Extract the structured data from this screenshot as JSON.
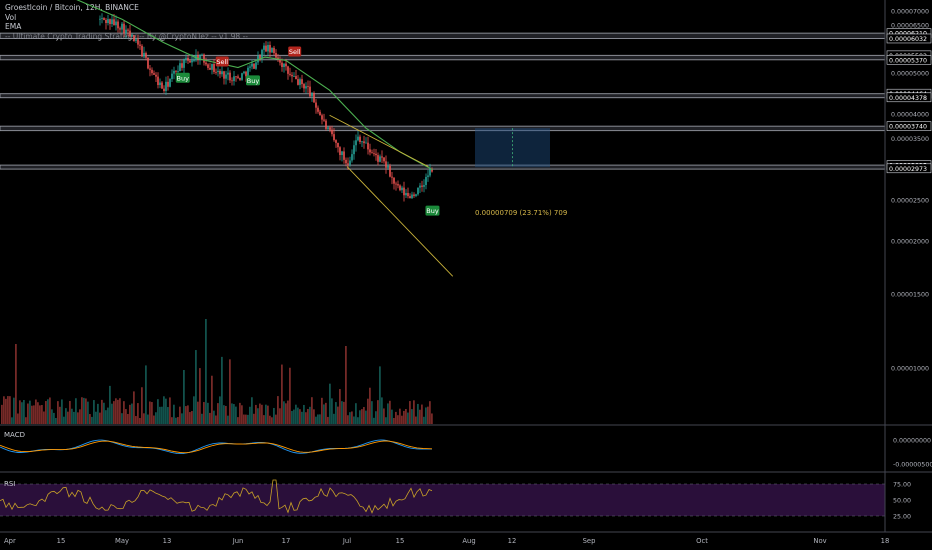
{
  "legend": {
    "title": "Groestlcoin / Bitcoin, 12H, BINANCE",
    "vol": "Vol",
    "ema": "EMA",
    "strategy": "-- Ultimate Crypto Trading Strategy -- By @CryptoNTez -- v1.98 --"
  },
  "price_axis": {
    "ticks": [
      "0.00007000",
      "0.00006500",
      "0.00006000",
      "0.00005500",
      "0.00005000",
      "0.00004500",
      "0.00004000",
      "0.00003500",
      "0.00003000",
      "0.00002500",
      "0.00002000",
      "0.00001500",
      "0.00001000"
    ],
    "tick_values": [
      7e-05,
      6.5e-05,
      6e-05,
      5.5e-05,
      5e-05,
      4.5e-05,
      4e-05,
      3.5e-05,
      3e-05,
      2.5e-05,
      2e-05,
      1.5e-05,
      1e-05
    ],
    "level_labels": [
      "0.00006210",
      "0.00006032",
      "0.00005502",
      "0.00005370",
      "0.00004464",
      "0.00004378",
      "0.00003740",
      "0.00003025",
      "0.00002973"
    ]
  },
  "time_axis": {
    "labels": [
      "Apr",
      "15",
      "May",
      "13",
      "Jun",
      "17",
      "Jul",
      "15",
      "Aug",
      "12",
      "Sep",
      "Oct",
      "Nov",
      "18"
    ]
  },
  "signals": {
    "buy": "Buy",
    "sell": "Sell"
  },
  "measure": {
    "label": "0.00000709 (23.71%) 709"
  },
  "macd": {
    "title": "MACD",
    "ticks": [
      "0.00000000",
      "-0.00000500"
    ]
  },
  "rsi": {
    "title": "RSI",
    "ticks": [
      "75.00",
      "50.00",
      "25.00"
    ]
  },
  "colors": {
    "background": "#000000",
    "up": "#26a69a",
    "down": "#ef5350",
    "ema": "#4caf50",
    "wedge": "#c9b23a",
    "buy_badge": "#1b8a3a",
    "sell_badge": "#b3261e",
    "macd_line": "#2196f3",
    "signal_line": "#ff9800",
    "rsi_line": "#c9a227",
    "rsi_band": "#2a0f3a"
  },
  "chart_data": {
    "type": "candlestick",
    "title": "Groestlcoin / Bitcoin, 12H, BINANCE",
    "x_range": [
      "Apr",
      "Nov 18"
    ],
    "ylim": [
      8.5e-06,
      7.25e-05
    ],
    "horizontal_levels": [
      {
        "top": 6.21e-05,
        "bottom": 6.032e-05
      },
      {
        "top": 5.502e-05,
        "bottom": 5.37e-05
      },
      {
        "top": 4.464e-05,
        "bottom": 4.378e-05
      },
      {
        "top": 3.74e-05,
        "bottom": 3.65e-05
      },
      {
        "top": 3.025e-05,
        "bottom": 2.973e-05
      }
    ],
    "price_path": [
      [
        "Apr 1",
        7.25e-05
      ],
      [
        "Apr 15",
        6.9e-05
      ],
      [
        "Apr 27",
        6.65e-05
      ],
      [
        "May 1",
        6.45e-05
      ],
      [
        "May 6",
        5.75e-05
      ],
      [
        "May 10",
        4.95e-05
      ],
      [
        "May 13",
        4.55e-05
      ],
      [
        "May 17",
        5.2e-05
      ],
      [
        "May 22",
        5.5e-05
      ],
      [
        "May 27",
        5e-05
      ],
      [
        "Jun 1",
        4.85e-05
      ],
      [
        "Jun 6",
        5.2e-05
      ],
      [
        "Jun 10",
        5.75e-05
      ],
      [
        "Jun 14",
        5.5e-05
      ],
      [
        "Jun 18",
        4.9e-05
      ],
      [
        "Jun 22",
        4.6e-05
      ],
      [
        "Jun 26",
        3.75e-05
      ],
      [
        "Jul 1",
        3.05e-05
      ],
      [
        "Jul 4",
        3.55e-05
      ],
      [
        "Jul 8",
        3.2e-05
      ],
      [
        "Jul 11",
        3.05e-05
      ],
      [
        "Jul 14",
        2.68e-05
      ],
      [
        "Jul 17",
        2.55e-05
      ],
      [
        "Jul 20",
        2.65e-05
      ],
      [
        "Jul 23",
        2.98e-05
      ]
    ],
    "ema_path": [
      [
        "Apr 17",
        7.6e-05
      ],
      [
        "May 1",
        6.7e-05
      ],
      [
        "May 13",
        5.9e-05
      ],
      [
        "May 22",
        5.4e-05
      ],
      [
        "Jun 1",
        5.15e-05
      ],
      [
        "Jun 10",
        5.45e-05
      ],
      [
        "Jun 17",
        5.35e-05
      ],
      [
        "Jun 27",
        4.55e-05
      ],
      [
        "Jul 6",
        3.7e-05
      ],
      [
        "Jul 15",
        3.25e-05
      ],
      [
        "Jul 23",
        2.95e-05
      ]
    ],
    "wedge": {
      "upper": [
        [
          "Jun 27",
          3.97e-05
        ],
        [
          "Jul 22",
          3e-05
        ]
      ],
      "lower": [
        [
          "Jul 1",
          3e-05
        ],
        [
          "Jul 28",
          1.65e-05
        ]
      ]
    },
    "signals": [
      {
        "type": "Buy",
        "date": "May 18",
        "price": 4.87e-05
      },
      {
        "type": "Sell",
        "date": "May 28",
        "price": 5.32e-05
      },
      {
        "type": "Buy",
        "date": "Jun 6",
        "price": 4.8e-05
      },
      {
        "type": "Sell",
        "date": "Jun 19",
        "price": 5.62e-05
      },
      {
        "type": "Buy",
        "date": "Jul 23",
        "price": 2.36e-05
      }
    ],
    "measure": {
      "from": 2.99e-05,
      "to": 3.7e-05,
      "change": 7.09e-06,
      "percent": 23.71,
      "ticks": 709
    }
  }
}
